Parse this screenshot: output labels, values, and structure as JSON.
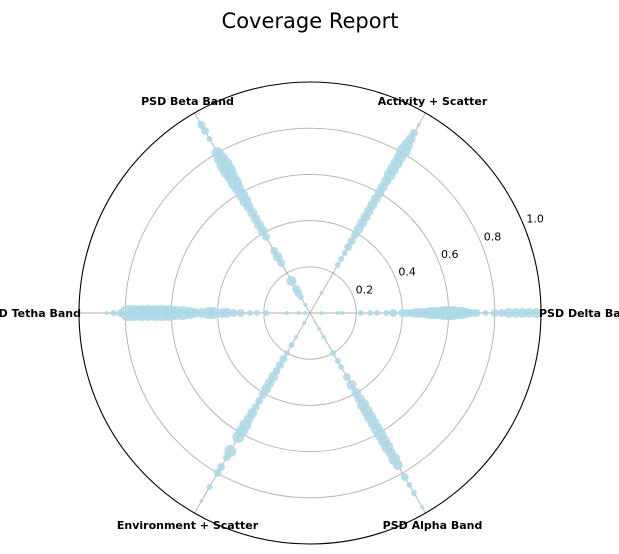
{
  "chart_data": {
    "type": "scatter",
    "subtype": "polar",
    "title": "Coverage Report",
    "rlim": [
      0,
      1.0
    ],
    "r_ticks": [
      0.2,
      0.4,
      0.6,
      0.8,
      1.0
    ],
    "r_tick_labels": [
      "0.2",
      "0.4",
      "0.6",
      "0.8",
      "1.0"
    ],
    "grid": true,
    "marker_color": "#add8e6",
    "marker_alpha": 0.85,
    "axes": [
      {
        "label": "PSD Delta Band",
        "angle_deg": 0
      },
      {
        "label": "Activity + Scatter",
        "angle_deg": 60
      },
      {
        "label": "PSD Beta Band",
        "angle_deg": 120
      },
      {
        "label": "PSD Tetha Band",
        "angle_deg": 180
      },
      {
        "label": "Environment + Scatter",
        "angle_deg": 240
      },
      {
        "label": "PSD Alpha Band",
        "angle_deg": 300
      }
    ],
    "series": [
      {
        "axis": "PSD Delta Band",
        "points": [
          {
            "r": 0.05,
            "s": 2
          },
          {
            "r": 0.12,
            "s": 2
          },
          {
            "r": 0.14,
            "s": 2
          },
          {
            "r": 0.22,
            "s": 3
          },
          {
            "r": 0.26,
            "s": 3
          },
          {
            "r": 0.29,
            "s": 3
          },
          {
            "r": 0.33,
            "s": 3
          },
          {
            "r": 0.36,
            "s": 4
          },
          {
            "r": 0.4,
            "s": 4
          },
          {
            "r": 0.42,
            "s": 4
          },
          {
            "r": 0.44,
            "s": 4
          },
          {
            "r": 0.46,
            "s": 5
          },
          {
            "r": 0.48,
            "s": 5
          },
          {
            "r": 0.5,
            "s": 5
          },
          {
            "r": 0.52,
            "s": 6
          },
          {
            "r": 0.54,
            "s": 6
          },
          {
            "r": 0.56,
            "s": 6
          },
          {
            "r": 0.58,
            "s": 7
          },
          {
            "r": 0.6,
            "s": 7
          },
          {
            "r": 0.62,
            "s": 7
          },
          {
            "r": 0.64,
            "s": 6
          },
          {
            "r": 0.66,
            "s": 6
          },
          {
            "r": 0.68,
            "s": 5
          },
          {
            "r": 0.7,
            "s": 4
          },
          {
            "r": 0.72,
            "s": 4
          },
          {
            "r": 0.76,
            "s": 3
          },
          {
            "r": 0.8,
            "s": 4
          },
          {
            "r": 0.83,
            "s": 4
          },
          {
            "r": 0.86,
            "s": 5
          },
          {
            "r": 0.89,
            "s": 5
          },
          {
            "r": 0.92,
            "s": 5
          },
          {
            "r": 0.95,
            "s": 5
          },
          {
            "r": 0.98,
            "s": 5
          }
        ]
      },
      {
        "axis": "Activity + Scatter",
        "points": [
          {
            "r": 0.1,
            "s": 2
          },
          {
            "r": 0.24,
            "s": 3
          },
          {
            "r": 0.27,
            "s": 3
          },
          {
            "r": 0.3,
            "s": 3
          },
          {
            "r": 0.33,
            "s": 4
          },
          {
            "r": 0.36,
            "s": 4
          },
          {
            "r": 0.39,
            "s": 4
          },
          {
            "r": 0.42,
            "s": 5
          },
          {
            "r": 0.45,
            "s": 5
          },
          {
            "r": 0.48,
            "s": 5
          },
          {
            "r": 0.51,
            "s": 5
          },
          {
            "r": 0.54,
            "s": 5
          },
          {
            "r": 0.57,
            "s": 5
          },
          {
            "r": 0.6,
            "s": 5
          },
          {
            "r": 0.63,
            "s": 5
          },
          {
            "r": 0.66,
            "s": 5
          },
          {
            "r": 0.69,
            "s": 6
          },
          {
            "r": 0.72,
            "s": 6
          },
          {
            "r": 0.75,
            "s": 6
          },
          {
            "r": 0.78,
            "s": 6
          },
          {
            "r": 0.81,
            "s": 7
          },
          {
            "r": 0.84,
            "s": 6
          },
          {
            "r": 0.87,
            "s": 5
          },
          {
            "r": 0.9,
            "s": 4
          },
          {
            "r": 0.94,
            "s": 2
          }
        ]
      },
      {
        "axis": "PSD Beta Band",
        "points": [
          {
            "r": 0.04,
            "s": 2
          },
          {
            "r": 0.08,
            "s": 3
          },
          {
            "r": 0.1,
            "s": 4
          },
          {
            "r": 0.12,
            "s": 4
          },
          {
            "r": 0.16,
            "s": 5
          },
          {
            "r": 0.25,
            "s": 4
          },
          {
            "r": 0.28,
            "s": 5
          },
          {
            "r": 0.31,
            "s": 4
          },
          {
            "r": 0.38,
            "s": 4
          },
          {
            "r": 0.41,
            "s": 5
          },
          {
            "r": 0.44,
            "s": 5
          },
          {
            "r": 0.47,
            "s": 5
          },
          {
            "r": 0.5,
            "s": 5
          },
          {
            "r": 0.53,
            "s": 5
          },
          {
            "r": 0.56,
            "s": 6
          },
          {
            "r": 0.59,
            "s": 6
          },
          {
            "r": 0.62,
            "s": 6
          },
          {
            "r": 0.65,
            "s": 7
          },
          {
            "r": 0.68,
            "s": 7
          },
          {
            "r": 0.71,
            "s": 8
          },
          {
            "r": 0.74,
            "s": 8
          },
          {
            "r": 0.77,
            "s": 7
          },
          {
            "r": 0.8,
            "s": 6
          },
          {
            "r": 0.87,
            "s": 3
          },
          {
            "r": 0.91,
            "s": 4
          },
          {
            "r": 0.94,
            "s": 4
          }
        ]
      },
      {
        "axis": "PSD Tetha Band",
        "points": [
          {
            "r": 0.02,
            "s": 2
          },
          {
            "r": 0.05,
            "s": 2
          },
          {
            "r": 0.1,
            "s": 2
          },
          {
            "r": 0.19,
            "s": 3
          },
          {
            "r": 0.23,
            "s": 3
          },
          {
            "r": 0.26,
            "s": 3
          },
          {
            "r": 0.3,
            "s": 4
          },
          {
            "r": 0.33,
            "s": 4
          },
          {
            "r": 0.36,
            "s": 5
          },
          {
            "r": 0.38,
            "s": 5
          },
          {
            "r": 0.42,
            "s": 6
          },
          {
            "r": 0.44,
            "s": 6
          },
          {
            "r": 0.47,
            "s": 5
          },
          {
            "r": 0.5,
            "s": 5
          },
          {
            "r": 0.52,
            "s": 6
          },
          {
            "r": 0.55,
            "s": 7
          },
          {
            "r": 0.58,
            "s": 7
          },
          {
            "r": 0.61,
            "s": 8
          },
          {
            "r": 0.64,
            "s": 8
          },
          {
            "r": 0.67,
            "s": 8
          },
          {
            "r": 0.7,
            "s": 8
          },
          {
            "r": 0.73,
            "s": 8
          },
          {
            "r": 0.76,
            "s": 8
          },
          {
            "r": 0.79,
            "s": 8
          },
          {
            "r": 0.82,
            "s": 4
          },
          {
            "r": 0.85,
            "s": 3
          },
          {
            "r": 0.88,
            "s": 2
          }
        ]
      },
      {
        "axis": "Environment + Scatter",
        "points": [
          {
            "r": 0.05,
            "s": 2
          },
          {
            "r": 0.12,
            "s": 2
          },
          {
            "r": 0.16,
            "s": 3
          },
          {
            "r": 0.2,
            "s": 3
          },
          {
            "r": 0.23,
            "s": 4
          },
          {
            "r": 0.26,
            "s": 4
          },
          {
            "r": 0.29,
            "s": 4
          },
          {
            "r": 0.32,
            "s": 5
          },
          {
            "r": 0.35,
            "s": 5
          },
          {
            "r": 0.38,
            "s": 5
          },
          {
            "r": 0.41,
            "s": 4
          },
          {
            "r": 0.44,
            "s": 4
          },
          {
            "r": 0.47,
            "s": 4
          },
          {
            "r": 0.5,
            "s": 5
          },
          {
            "r": 0.53,
            "s": 5
          },
          {
            "r": 0.56,
            "s": 6
          },
          {
            "r": 0.59,
            "s": 6
          },
          {
            "r": 0.62,
            "s": 6
          },
          {
            "r": 0.69,
            "s": 6
          },
          {
            "r": 0.72,
            "s": 4
          },
          {
            "r": 0.77,
            "s": 4
          },
          {
            "r": 0.8,
            "s": 4
          },
          {
            "r": 0.87,
            "s": 3
          },
          {
            "r": 0.94,
            "s": 2
          }
        ]
      },
      {
        "axis": "PSD Alpha Band",
        "points": [
          {
            "r": 0.08,
            "s": 2
          },
          {
            "r": 0.12,
            "s": 2
          },
          {
            "r": 0.2,
            "s": 3
          },
          {
            "r": 0.24,
            "s": 3
          },
          {
            "r": 0.27,
            "s": 3
          },
          {
            "r": 0.32,
            "s": 4
          },
          {
            "r": 0.36,
            "s": 5
          },
          {
            "r": 0.4,
            "s": 5
          },
          {
            "r": 0.43,
            "s": 5
          },
          {
            "r": 0.46,
            "s": 6
          },
          {
            "r": 0.49,
            "s": 6
          },
          {
            "r": 0.52,
            "s": 6
          },
          {
            "r": 0.55,
            "s": 6
          },
          {
            "r": 0.58,
            "s": 6
          },
          {
            "r": 0.61,
            "s": 6
          },
          {
            "r": 0.64,
            "s": 6
          },
          {
            "r": 0.67,
            "s": 6
          },
          {
            "r": 0.7,
            "s": 5
          },
          {
            "r": 0.73,
            "s": 6
          },
          {
            "r": 0.76,
            "s": 5
          },
          {
            "r": 0.82,
            "s": 4
          },
          {
            "r": 0.86,
            "s": 3
          },
          {
            "r": 0.9,
            "s": 3
          },
          {
            "r": 0.97,
            "s": 2
          }
        ]
      }
    ]
  }
}
